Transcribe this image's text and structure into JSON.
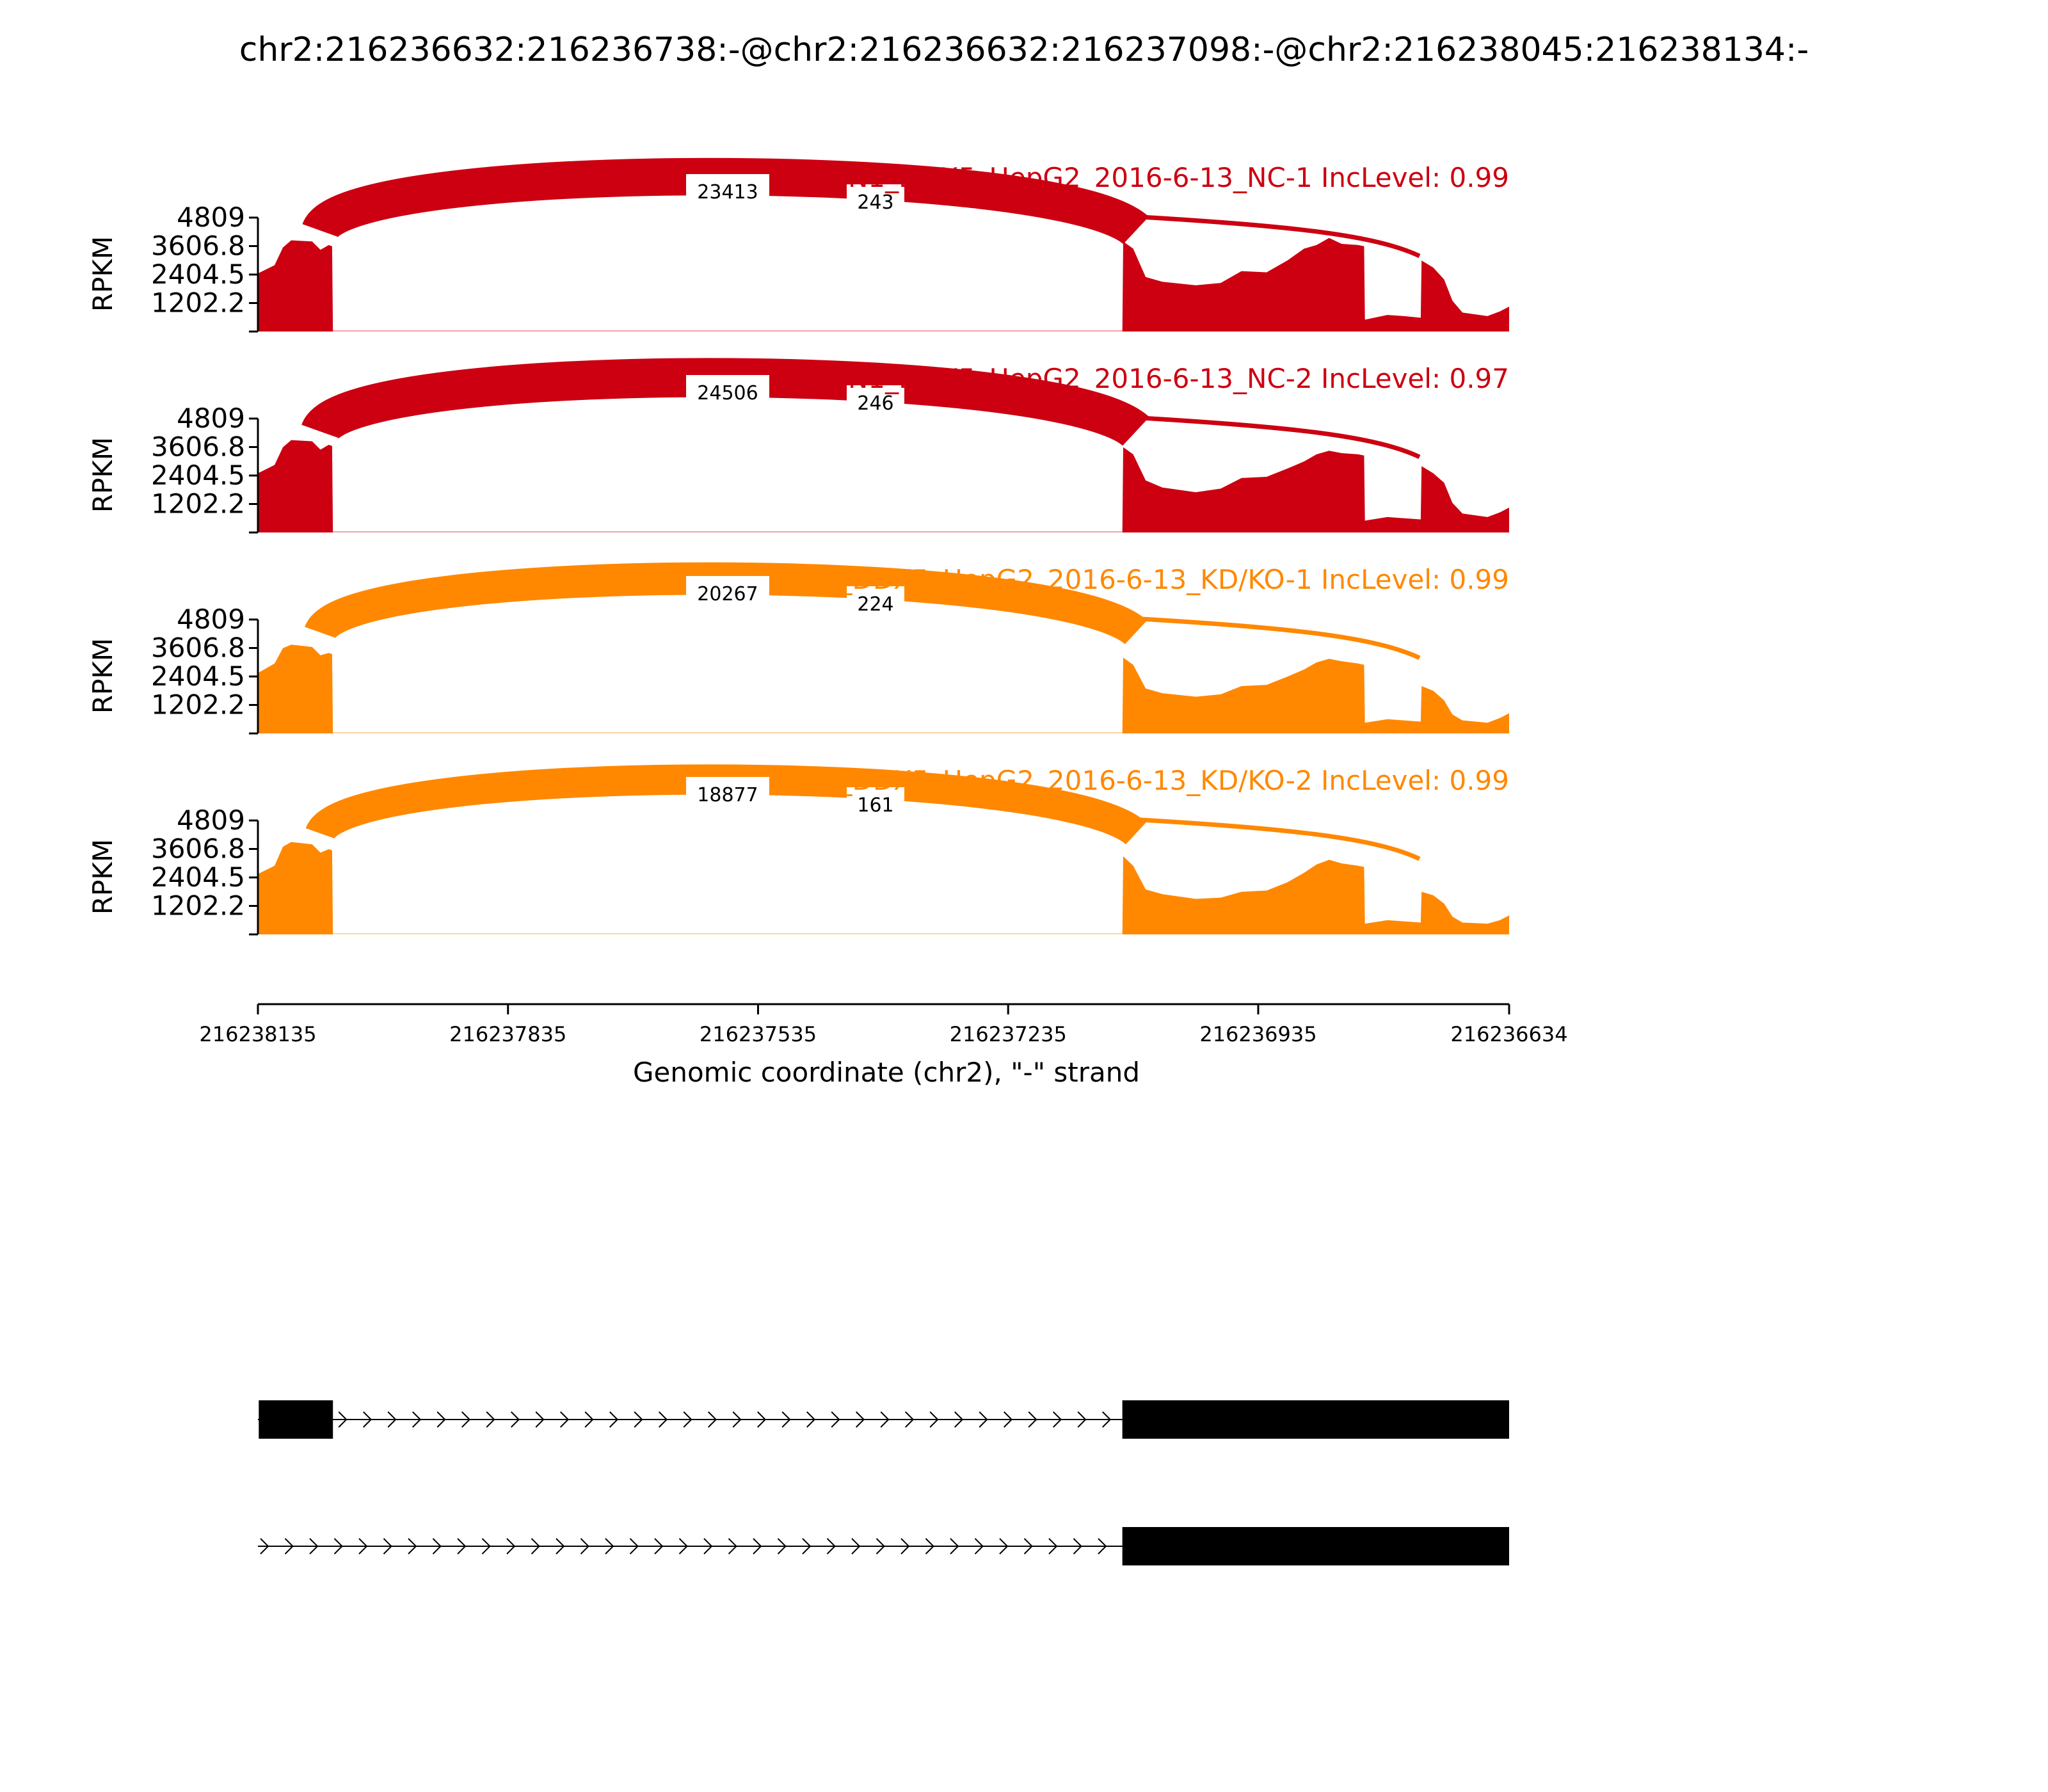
{
  "figure": {
    "title": "chr2:216236632:216236738:-@chr2:216236632:216237098:-@chr2:216238045:216238134:-"
  },
  "chart_data": {
    "type": "area",
    "chart_subtype": "sashimi",
    "strand": "-",
    "x_axis": {
      "label": "Genomic coordinate (chr2), \"-\" strand",
      "range": [
        216238135,
        216236634
      ],
      "direction": "decreasing",
      "ticks": [
        216238135,
        216237835,
        216237535,
        216237235,
        216236935,
        216236634
      ]
    },
    "y_axis": {
      "label": "RPKM",
      "range": [
        0,
        4809
      ],
      "ticks": [
        1202.2,
        2404.5,
        3606.8,
        4809
      ]
    },
    "panels": [
      {
        "name": "FN1_DDX5_HepG2_2016-6-13_NC-1",
        "title": "FN1_DDX5_HepG2_2016-6-13_NC-1 IncLevel: 0.99",
        "inc_level": 0.99,
        "color": "#cc0011",
        "junctions": [
          {
            "label": "23413",
            "reads": 23413
          },
          {
            "label": "243",
            "reads": 243
          }
        ],
        "coverage": [
          [
            216238135,
            2450
          ],
          [
            216238115,
            2800
          ],
          [
            216238105,
            3550
          ],
          [
            216238095,
            3850
          ],
          [
            216238070,
            3800
          ],
          [
            216238060,
            3450
          ],
          [
            216238050,
            3650
          ],
          [
            216238046,
            3600
          ],
          [
            216238045,
            0
          ],
          [
            216237098,
            0
          ],
          [
            216237097,
            3800
          ],
          [
            216237085,
            3500
          ],
          [
            216237070,
            2300
          ],
          [
            216237050,
            2100
          ],
          [
            216237010,
            1950
          ],
          [
            216236980,
            2050
          ],
          [
            216236955,
            2550
          ],
          [
            216236925,
            2500
          ],
          [
            216236900,
            3000
          ],
          [
            216236880,
            3500
          ],
          [
            216236865,
            3650
          ],
          [
            216236850,
            3950
          ],
          [
            216236835,
            3700
          ],
          [
            216236815,
            3650
          ],
          [
            216236808,
            3600
          ],
          [
            216236807,
            500
          ],
          [
            216236780,
            700
          ],
          [
            216236760,
            650
          ],
          [
            216236740,
            580
          ],
          [
            216236739,
            3000
          ],
          [
            216236725,
            2700
          ],
          [
            216236712,
            2200
          ],
          [
            216236702,
            1300
          ],
          [
            216236690,
            800
          ],
          [
            216236660,
            650
          ],
          [
            216236645,
            850
          ],
          [
            216236634,
            1050
          ]
        ]
      },
      {
        "name": "FN1_DDX5_HepG2_2016-6-13_NC-2",
        "title": "FN1_DDX5_HepG2_2016-6-13_NC-2 IncLevel: 0.97",
        "inc_level": 0.97,
        "color": "#cc0011",
        "junctions": [
          {
            "label": "24506",
            "reads": 24506
          },
          {
            "label": "246",
            "reads": 246
          }
        ],
        "coverage": [
          [
            216238135,
            2500
          ],
          [
            216238115,
            2850
          ],
          [
            216238105,
            3600
          ],
          [
            216238095,
            3900
          ],
          [
            216238070,
            3850
          ],
          [
            216238060,
            3500
          ],
          [
            216238050,
            3700
          ],
          [
            216238046,
            3650
          ],
          [
            216238045,
            0
          ],
          [
            216237098,
            0
          ],
          [
            216237097,
            3600
          ],
          [
            216237085,
            3300
          ],
          [
            216237070,
            2200
          ],
          [
            216237050,
            1900
          ],
          [
            216237010,
            1700
          ],
          [
            216236980,
            1850
          ],
          [
            216236955,
            2300
          ],
          [
            216236925,
            2350
          ],
          [
            216236900,
            2700
          ],
          [
            216236880,
            3000
          ],
          [
            216236865,
            3300
          ],
          [
            216236850,
            3450
          ],
          [
            216236835,
            3350
          ],
          [
            216236815,
            3300
          ],
          [
            216236808,
            3250
          ],
          [
            216236807,
            500
          ],
          [
            216236780,
            650
          ],
          [
            216236760,
            600
          ],
          [
            216236740,
            550
          ],
          [
            216236739,
            2800
          ],
          [
            216236725,
            2500
          ],
          [
            216236712,
            2100
          ],
          [
            216236702,
            1250
          ],
          [
            216236690,
            800
          ],
          [
            216236660,
            650
          ],
          [
            216236645,
            850
          ],
          [
            216236634,
            1050
          ]
        ]
      },
      {
        "name": "FN1_DDX5_HepG2_2016-6-13_KD/KO-1",
        "title": "FN1_DDX5_HepG2_2016-6-13_KD/KO-1 IncLevel: 0.99",
        "inc_level": 0.99,
        "color": "#ff8800",
        "junctions": [
          {
            "label": "20267",
            "reads": 20267
          },
          {
            "label": "224",
            "reads": 224
          }
        ],
        "coverage": [
          [
            216238135,
            2550
          ],
          [
            216238115,
            2950
          ],
          [
            216238105,
            3600
          ],
          [
            216238095,
            3750
          ],
          [
            216238070,
            3650
          ],
          [
            216238060,
            3300
          ],
          [
            216238050,
            3400
          ],
          [
            216238046,
            3350
          ],
          [
            216238045,
            0
          ],
          [
            216237098,
            0
          ],
          [
            216237097,
            3200
          ],
          [
            216237085,
            2900
          ],
          [
            216237070,
            1900
          ],
          [
            216237050,
            1700
          ],
          [
            216237010,
            1550
          ],
          [
            216236980,
            1650
          ],
          [
            216236955,
            2000
          ],
          [
            216236925,
            2050
          ],
          [
            216236900,
            2400
          ],
          [
            216236880,
            2700
          ],
          [
            216236865,
            3000
          ],
          [
            216236850,
            3150
          ],
          [
            216236835,
            3050
          ],
          [
            216236815,
            2950
          ],
          [
            216236808,
            2900
          ],
          [
            216236807,
            450
          ],
          [
            216236780,
            600
          ],
          [
            216236760,
            550
          ],
          [
            216236740,
            500
          ],
          [
            216236739,
            2000
          ],
          [
            216236725,
            1800
          ],
          [
            216236712,
            1400
          ],
          [
            216236702,
            800
          ],
          [
            216236690,
            550
          ],
          [
            216236660,
            450
          ],
          [
            216236645,
            650
          ],
          [
            216236634,
            850
          ]
        ]
      },
      {
        "name": "FN1_DDX5_HepG2_2016-6-13_KD/KO-2",
        "title": "FN1_DDX5_HepG2_2016-6-13_KD/KO-2 IncLevel: 0.99",
        "inc_level": 0.99,
        "color": "#ff8800",
        "junctions": [
          {
            "label": "18877",
            "reads": 18877
          },
          {
            "label": "161",
            "reads": 161
          }
        ],
        "coverage": [
          [
            216238135,
            2550
          ],
          [
            216238115,
            2900
          ],
          [
            216238105,
            3700
          ],
          [
            216238095,
            3900
          ],
          [
            216238070,
            3800
          ],
          [
            216238060,
            3450
          ],
          [
            216238050,
            3600
          ],
          [
            216238046,
            3550
          ],
          [
            216238045,
            0
          ],
          [
            216237098,
            0
          ],
          [
            216237097,
            3300
          ],
          [
            216237085,
            2900
          ],
          [
            216237070,
            1900
          ],
          [
            216237050,
            1700
          ],
          [
            216237010,
            1500
          ],
          [
            216236980,
            1550
          ],
          [
            216236955,
            1800
          ],
          [
            216236925,
            1850
          ],
          [
            216236900,
            2200
          ],
          [
            216236880,
            2600
          ],
          [
            216236865,
            2950
          ],
          [
            216236850,
            3150
          ],
          [
            216236835,
            3000
          ],
          [
            216236815,
            2900
          ],
          [
            216236808,
            2850
          ],
          [
            216236807,
            450
          ],
          [
            216236780,
            600
          ],
          [
            216236760,
            550
          ],
          [
            216236740,
            500
          ],
          [
            216236739,
            1800
          ],
          [
            216236725,
            1650
          ],
          [
            216236712,
            1300
          ],
          [
            216236702,
            750
          ],
          [
            216236690,
            500
          ],
          [
            216236660,
            450
          ],
          [
            216236645,
            600
          ],
          [
            216236634,
            800
          ]
        ]
      }
    ],
    "isoforms": [
      {
        "exons": [
          [
            216238134,
            216238045
          ],
          [
            216237098,
            216236634
          ]
        ],
        "intron_arrows": ">"
      },
      {
        "exons": [
          [
            216237098,
            216236634
          ]
        ],
        "intron_arrows": ">"
      }
    ]
  }
}
